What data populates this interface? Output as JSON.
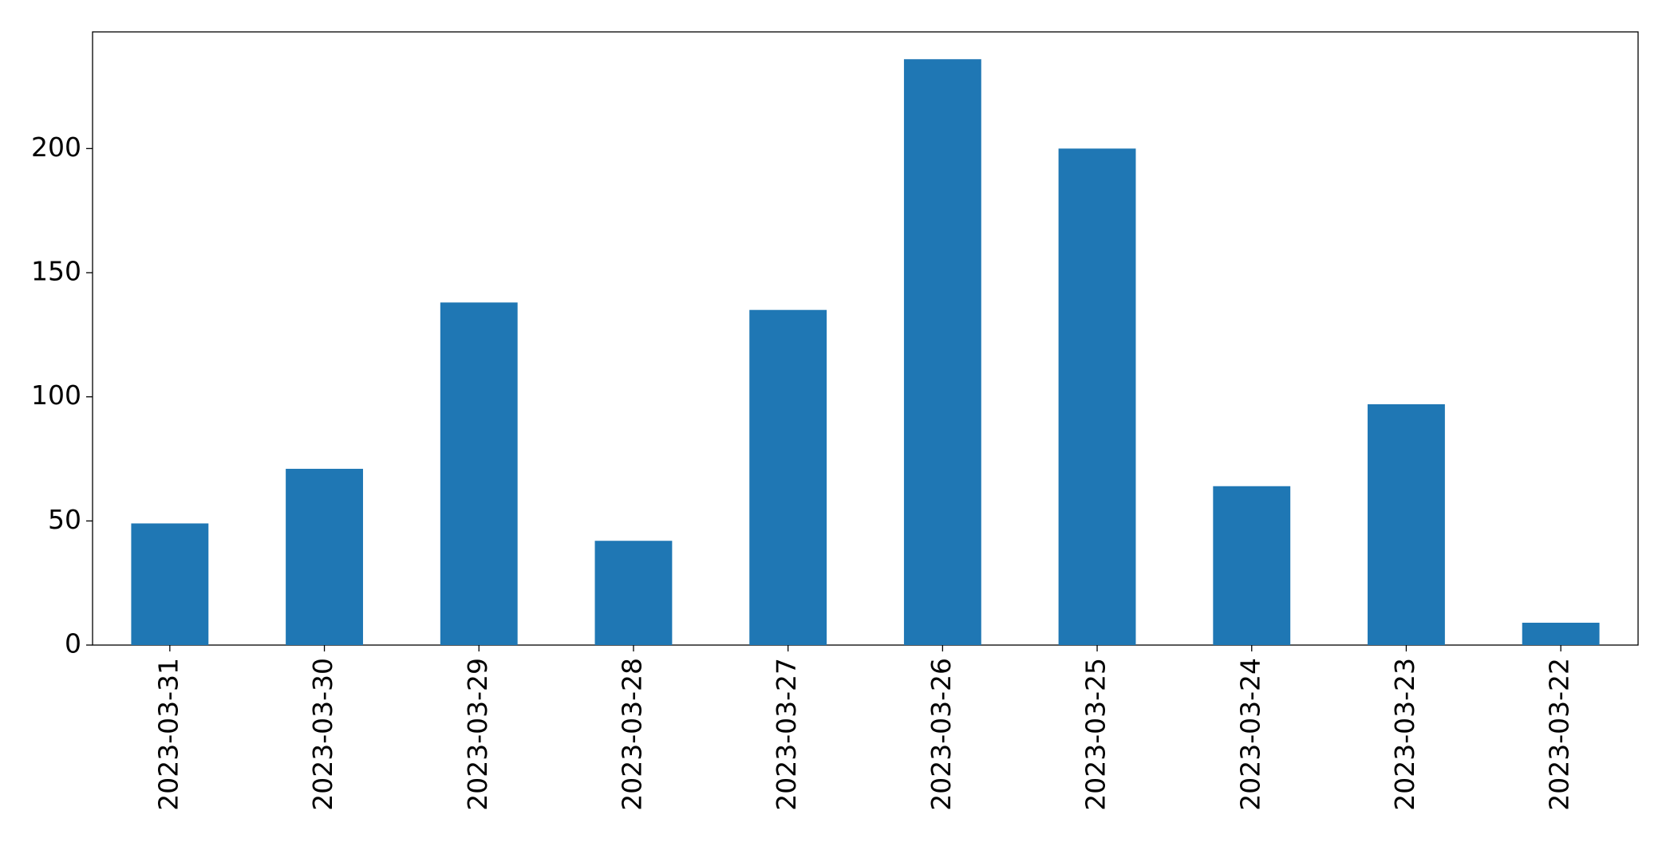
{
  "chart_data": {
    "type": "bar",
    "categories": [
      "2023-03-31",
      "2023-03-30",
      "2023-03-29",
      "2023-03-28",
      "2023-03-27",
      "2023-03-26",
      "2023-03-25",
      "2023-03-24",
      "2023-03-23",
      "2023-03-22"
    ],
    "values": [
      49,
      71,
      138,
      42,
      135,
      236,
      200,
      64,
      97,
      9
    ],
    "color": "#1f77b4",
    "ylim": [
      0,
      247
    ],
    "yticks": [
      0,
      50,
      100,
      150,
      200
    ],
    "grid": false
  }
}
